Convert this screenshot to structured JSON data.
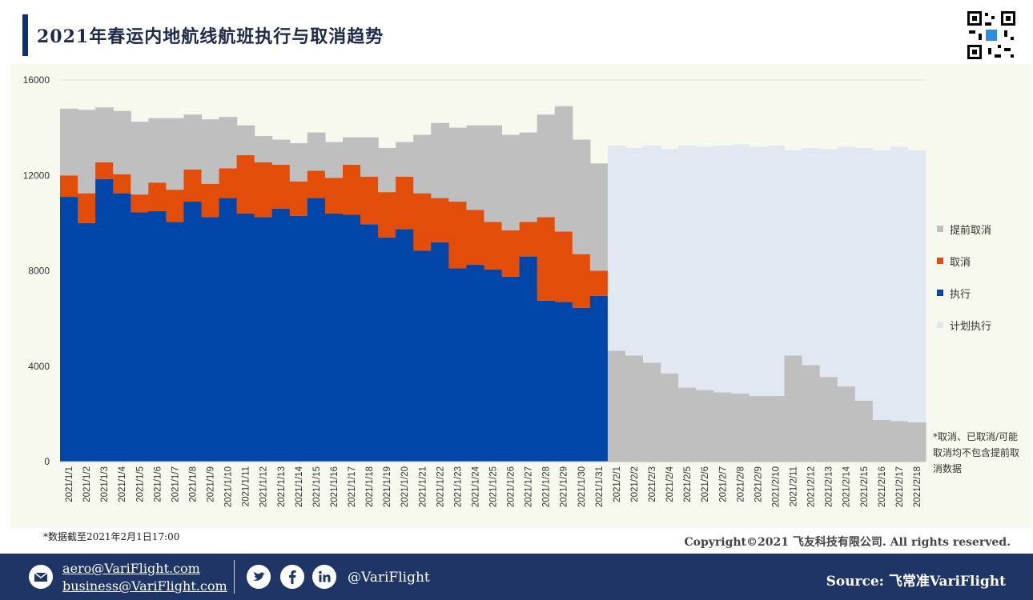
{
  "header": {
    "title": "2021年春运内地航线航班执行与取消趋势"
  },
  "colors": {
    "executed": "#0046a8",
    "cancelled": "#e24e0a",
    "advance_cancel": "#bfbfbf",
    "planned": "#e2e8f2",
    "title_bar": "#12306e",
    "footer": "#1f3566"
  },
  "chart_data": {
    "type": "bar",
    "stacked": true,
    "title": "",
    "xlabel": "",
    "ylabel": "",
    "ylim": [
      0,
      16000
    ],
    "yticks": [
      0,
      4000,
      8000,
      12000,
      16000
    ],
    "grid": true,
    "legend_position": "right",
    "categories": [
      "2021/1/1",
      "2021/1/2",
      "2021/1/3",
      "2021/1/4",
      "2021/1/5",
      "2021/1/6",
      "2021/1/7",
      "2021/1/8",
      "2021/1/9",
      "2021/1/10",
      "2021/1/11",
      "2021/1/12",
      "2021/1/13",
      "2021/1/14",
      "2021/1/15",
      "2021/1/16",
      "2021/1/17",
      "2021/1/18",
      "2021/1/19",
      "2021/1/20",
      "2021/1/21",
      "2021/1/22",
      "2021/1/23",
      "2021/1/24",
      "2021/1/25",
      "2021/1/26",
      "2021/1/27",
      "2021/1/28",
      "2021/1/29",
      "2021/1/30",
      "2021/1/31",
      "2021/2/1",
      "2021/2/2",
      "2021/2/3",
      "2021/2/4",
      "2021/2/5",
      "2021/2/6",
      "2021/2/7",
      "2021/2/8",
      "2021/2/9",
      "2021/2/10",
      "2021/2/11",
      "2021/2/12",
      "2021/2/13",
      "2021/2/14",
      "2021/2/15",
      "2021/2/16",
      "2021/2/17",
      "2021/2/18"
    ],
    "series": [
      {
        "name": "执行",
        "color": "#0046a8",
        "values": [
          11100,
          10000,
          11850,
          11250,
          10450,
          10500,
          10050,
          10900,
          10250,
          11050,
          10400,
          10250,
          10600,
          10300,
          11050,
          10400,
          10350,
          9950,
          9400,
          9750,
          8850,
          9200,
          8100,
          8250,
          8050,
          7750,
          8600,
          6750,
          6700,
          6450,
          6950,
          0,
          0,
          0,
          0,
          0,
          0,
          0,
          0,
          0,
          0,
          0,
          0,
          0,
          0,
          0,
          0,
          0,
          0
        ]
      },
      {
        "name": "取消",
        "color": "#e24e0a",
        "values": [
          900,
          1250,
          700,
          800,
          750,
          1200,
          1350,
          1350,
          1400,
          1250,
          2450,
          2300,
          1850,
          1450,
          1150,
          1500,
          2100,
          2000,
          1900,
          2200,
          2400,
          1850,
          2800,
          2300,
          2000,
          1950,
          1450,
          3500,
          2950,
          2250,
          1050,
          0,
          0,
          0,
          0,
          0,
          0,
          0,
          0,
          0,
          0,
          0,
          0,
          0,
          0,
          0,
          0,
          0,
          0
        ]
      },
      {
        "name": "提前取消",
        "color": "#bfbfbf",
        "values": [
          2800,
          3500,
          2300,
          2650,
          3050,
          2700,
          3000,
          2300,
          2700,
          2150,
          1250,
          1100,
          1050,
          1600,
          1600,
          1500,
          1150,
          1650,
          1850,
          1450,
          2450,
          3150,
          3100,
          3550,
          4050,
          4000,
          3750,
          4300,
          5250,
          4800,
          4500,
          4650,
          4450,
          4150,
          3700,
          3100,
          3000,
          2900,
          2850,
          2750,
          2750,
          4450,
          4050,
          3550,
          3150,
          2550,
          1750,
          1700,
          1650
        ]
      },
      {
        "name": "计划执行",
        "color": "#e2e8f2",
        "values": [
          0,
          0,
          0,
          0,
          0,
          0,
          0,
          0,
          0,
          0,
          0,
          0,
          0,
          0,
          0,
          0,
          0,
          0,
          0,
          0,
          0,
          0,
          0,
          0,
          0,
          0,
          0,
          0,
          0,
          0,
          0,
          8600,
          8700,
          9100,
          9400,
          10150,
          10200,
          10350,
          10450,
          10450,
          10500,
          8600,
          9100,
          9550,
          10050,
          10600,
          11300,
          11500,
          11400
        ]
      }
    ]
  },
  "legend": {
    "items": [
      {
        "label": "提前取消",
        "color": "#bfbfbf"
      },
      {
        "label": "取消",
        "color": "#e24e0a"
      },
      {
        "label": "执行",
        "color": "#0046a8"
      },
      {
        "label": "计划执行",
        "color": "#e2e8f2"
      }
    ]
  },
  "note": "*取消、已取消/可能取消均不包含提前取消数据",
  "footnote": "*数据截至2021年2月1日17:00",
  "copyright": "Copyright©2021 飞友科技有限公司. All rights reserved.",
  "footer": {
    "email1": "aero@VariFlight.com",
    "email2": "business@VariFlight.com",
    "handle": "@VariFlight",
    "source": "Source: 飞常准VariFlight"
  },
  "icons": [
    "mail-icon",
    "twitter-icon",
    "facebook-icon",
    "linkedin-icon",
    "qr-code-icon"
  ]
}
